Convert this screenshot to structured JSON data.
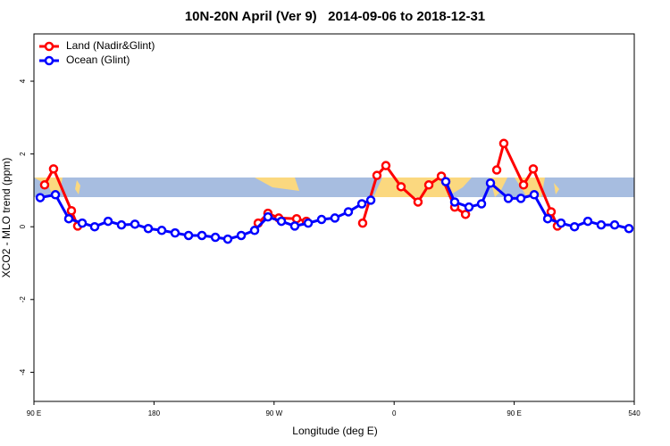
{
  "chart_data": {
    "type": "line",
    "title": "10N-20N April (Ver 9)   2014-09-06 to 2018-12-31",
    "x_label": "Longitude (deg E)",
    "y_label": "XCO2 - MLO trend (ppm)",
    "xlim": [
      90,
      540
    ],
    "ylim": [
      -4.8,
      5.3
    ],
    "xticks": [
      {
        "value": 90,
        "label": "90 E"
      },
      180,
      {
        "value": 270,
        "label": "90 W"
      },
      {
        "value": 360,
        "label": "0"
      },
      {
        "value": 450,
        "label": "90 E"
      },
      540
    ],
    "yticks": [
      -4,
      -2,
      0,
      2,
      4
    ],
    "legend": "top-left",
    "series": [
      {
        "name": "Land (Nadir&Glint)",
        "color": "#ff0000",
        "x": [
          98.0,
          104.7,
          118.1,
          122.8,
          null,
          258.1,
          265.4,
          273.5,
          286.9,
          294.2,
          null,
          336.4,
          347.1,
          353.8,
          365.2,
          377.9,
          386.0,
          395.4,
          405.4,
          413.5,
          null,
          436.9,
          442.2,
          457.0,
          464.3,
          477.7,
          482.4
        ],
        "values": [
          1.15,
          1.59,
          0.44,
          0.02,
          null,
          0.1,
          0.37,
          0.24,
          0.22,
          0.15,
          null,
          0.1,
          1.41,
          1.68,
          1.1,
          0.68,
          1.15,
          1.39,
          0.54,
          0.34,
          null,
          1.56,
          2.29,
          1.15,
          1.59,
          0.41,
          0.02
        ]
      },
      {
        "name": "Ocean (Glint)",
        "color": "#0000ff",
        "x": [
          94.7,
          106.1,
          116.1,
          126.2,
          135.5,
          145.6,
          155.6,
          165.7,
          175.7,
          185.8,
          195.8,
          205.9,
          215.9,
          226.0,
          235.3,
          245.4,
          255.4,
          265.4,
          275.5,
          285.5,
          295.6,
          305.6,
          315.6,
          325.7,
          335.8,
          342.5,
          null,
          398.7,
          405.4,
          416.1,
          425.5,
          432.2,
          445.6,
          455.0,
          465.0,
          475.1,
          485.1,
          495.2,
          505.2,
          515.2,
          525.3,
          536.0
        ],
        "values": [
          0.8,
          0.88,
          0.22,
          0.1,
          0.0,
          0.15,
          0.05,
          0.07,
          -0.05,
          -0.1,
          -0.17,
          -0.24,
          -0.24,
          -0.29,
          -0.34,
          -0.24,
          -0.1,
          0.27,
          0.15,
          0.02,
          0.1,
          0.2,
          0.24,
          0.41,
          0.63,
          0.73,
          null,
          1.24,
          0.68,
          0.54,
          0.63,
          1.2,
          0.78,
          0.78,
          0.88,
          0.22,
          0.1,
          0.0,
          0.15,
          0.05,
          0.05,
          -0.05
        ]
      }
    ]
  }
}
